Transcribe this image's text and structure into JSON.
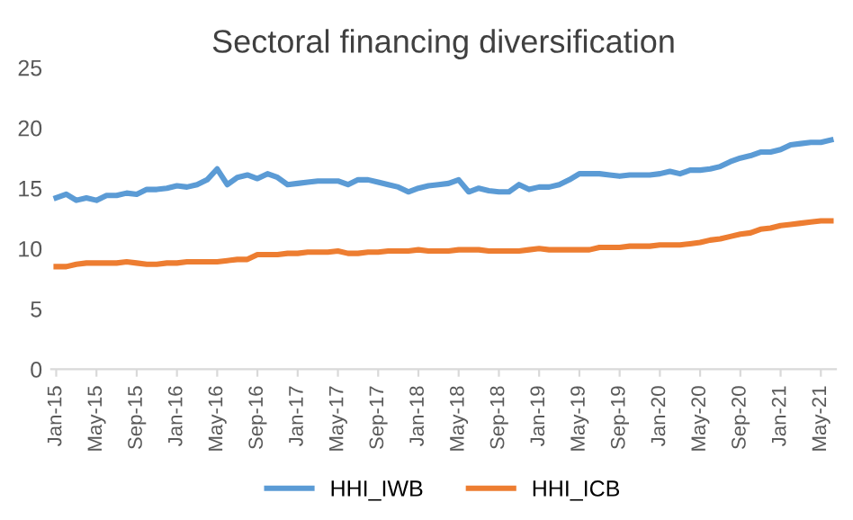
{
  "chart_data": {
    "type": "line",
    "title": "Sectoral financing diversification",
    "categories": [
      "Jan-15",
      null,
      null,
      null,
      "May-15",
      null,
      null,
      null,
      "Sep-15",
      null,
      null,
      null,
      "Jan-16",
      null,
      null,
      null,
      "May-16",
      null,
      null,
      null,
      "Sep-16",
      null,
      null,
      null,
      "Jan-17",
      null,
      null,
      null,
      "May-17",
      null,
      null,
      null,
      "Sep-17",
      null,
      null,
      null,
      "Jan-18",
      null,
      null,
      null,
      "May-18",
      null,
      null,
      null,
      "Sep-18",
      null,
      null,
      null,
      "Jan-19",
      null,
      null,
      null,
      "May-19",
      null,
      null,
      null,
      "Sep-19",
      null,
      null,
      null,
      "Jan-20",
      null,
      null,
      null,
      "May-20",
      null,
      null,
      null,
      "Sep-20",
      null,
      null,
      null,
      "Jan-21",
      null,
      null,
      null,
      "May-21",
      null
    ],
    "series": [
      {
        "name": "HHI_IWB",
        "color": "#5b9bd5",
        "values": [
          14.2,
          14.5,
          14.0,
          14.2,
          14.0,
          14.4,
          14.4,
          14.6,
          14.5,
          14.9,
          14.9,
          15.0,
          15.2,
          15.1,
          15.3,
          15.7,
          16.6,
          15.3,
          15.9,
          16.1,
          15.8,
          16.2,
          15.9,
          15.3,
          15.4,
          15.5,
          15.6,
          15.6,
          15.6,
          15.3,
          15.7,
          15.7,
          15.5,
          15.3,
          15.1,
          14.7,
          15.0,
          15.2,
          15.3,
          15.4,
          15.7,
          14.7,
          15.0,
          14.8,
          14.7,
          14.7,
          15.3,
          14.9,
          15.1,
          15.1,
          15.3,
          15.7,
          16.2,
          16.2,
          16.2,
          16.1,
          16.0,
          16.1,
          16.1,
          16.1,
          16.2,
          16.4,
          16.2,
          16.5,
          16.5,
          16.6,
          16.8,
          17.2,
          17.5,
          17.7,
          18.0,
          18.0,
          18.2,
          18.6,
          18.7,
          18.8,
          18.8,
          19.0
        ]
      },
      {
        "name": "HHI_ICB",
        "color": "#ed7d31",
        "values": [
          8.5,
          8.5,
          8.7,
          8.8,
          8.8,
          8.8,
          8.8,
          8.9,
          8.8,
          8.7,
          8.7,
          8.8,
          8.8,
          8.9,
          8.9,
          8.9,
          8.9,
          9.0,
          9.1,
          9.1,
          9.5,
          9.5,
          9.5,
          9.6,
          9.6,
          9.7,
          9.7,
          9.7,
          9.8,
          9.6,
          9.6,
          9.7,
          9.7,
          9.8,
          9.8,
          9.8,
          9.9,
          9.8,
          9.8,
          9.8,
          9.9,
          9.9,
          9.9,
          9.8,
          9.8,
          9.8,
          9.8,
          9.9,
          10.0,
          9.9,
          9.9,
          9.9,
          9.9,
          9.9,
          10.1,
          10.1,
          10.1,
          10.2,
          10.2,
          10.2,
          10.3,
          10.3,
          10.3,
          10.4,
          10.5,
          10.7,
          10.8,
          11.0,
          11.2,
          11.3,
          11.6,
          11.7,
          11.9,
          12.0,
          12.1,
          12.2,
          12.3,
          12.3
        ]
      }
    ],
    "ylim": [
      0,
      25
    ],
    "yticks": [
      0,
      5,
      10,
      15,
      20,
      25
    ],
    "grid": false,
    "legend": "bottom",
    "marker": "none",
    "line_style": "solid"
  }
}
